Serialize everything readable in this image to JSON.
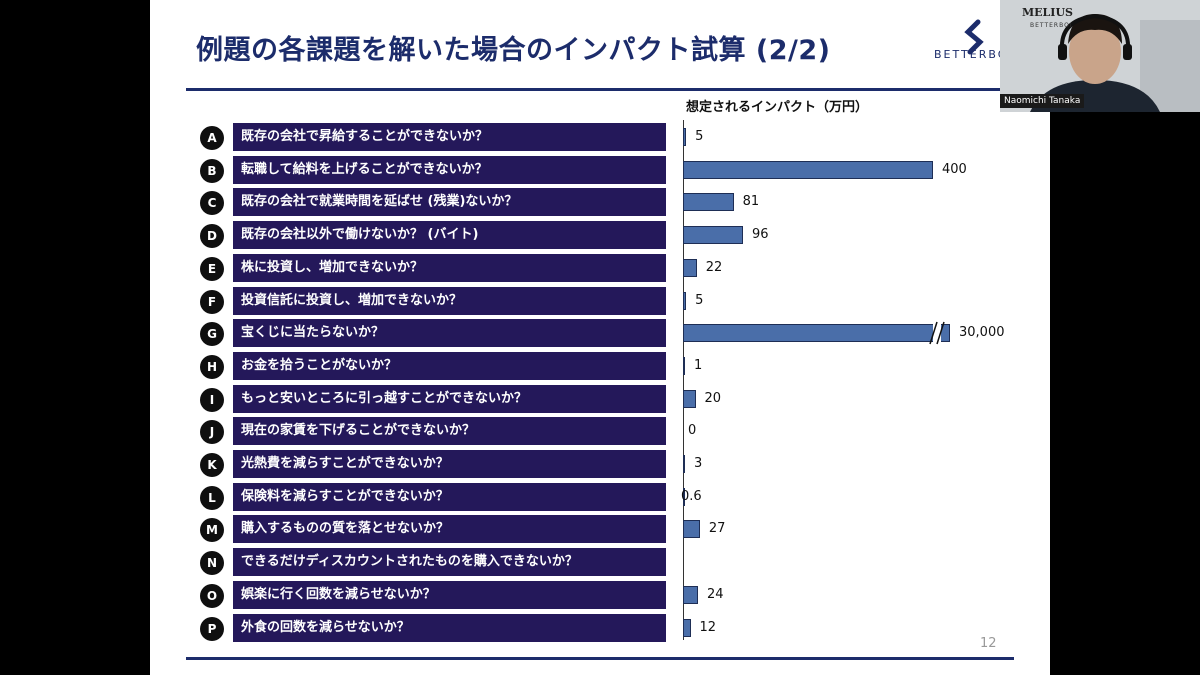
{
  "title": "例題の各課題を解いた場合のインパクト試算 (2/2)",
  "logo_text": "BETTERBO",
  "impact_header": "想定されるインパクト（万円）",
  "page_number": "12",
  "webcam": {
    "brand": "MELIUS",
    "sub": "BETTERBOI",
    "name": "Naomichi Tanaka"
  },
  "colors": {
    "navy": "#1c2c6b",
    "question_box": "#24185a",
    "bar": "#4a6ea9"
  },
  "chart_data": {
    "type": "bar",
    "orientation": "horizontal",
    "axis_break_on": "G",
    "categories": [
      "A",
      "B",
      "C",
      "D",
      "E",
      "F",
      "G",
      "H",
      "I",
      "J",
      "K",
      "L",
      "M",
      "N",
      "O",
      "P"
    ],
    "questions": [
      "既存の会社で昇給することができないか？",
      "転職して給料を上げることができないか？",
      "既存の会社で就業時間を延ばせ (残業)ないか？",
      "既存の会社以外で働けないか？ (バイト)",
      "株に投資し、増加できないか？",
      "投資信託に投資し、増加できないか？",
      "宝くじに当たらないか？",
      "お金を拾うことがないか？",
      "もっと安いところに引っ越すことができないか？",
      "現在の家賃を下げることができないか？",
      "光熱費を減らすことができないか？",
      "保険料を減らすことができないか？",
      "購入するものの質を落とせないか？",
      "できるだけディスカウントされたものを購入できないか？",
      "娯楽に行く回数を減らせないか？",
      "外食の回数を減らせないか？"
    ],
    "values": [
      5,
      400,
      81,
      96,
      22,
      5,
      30000,
      1,
      20,
      0,
      3,
      0.6,
      27,
      null,
      24,
      12
    ],
    "value_labels": [
      "5",
      "400",
      "81",
      "96",
      "22",
      "5",
      "30,000",
      "1",
      "20",
      "0",
      "3",
      "0.6",
      "27",
      "",
      "24",
      "12"
    ]
  }
}
